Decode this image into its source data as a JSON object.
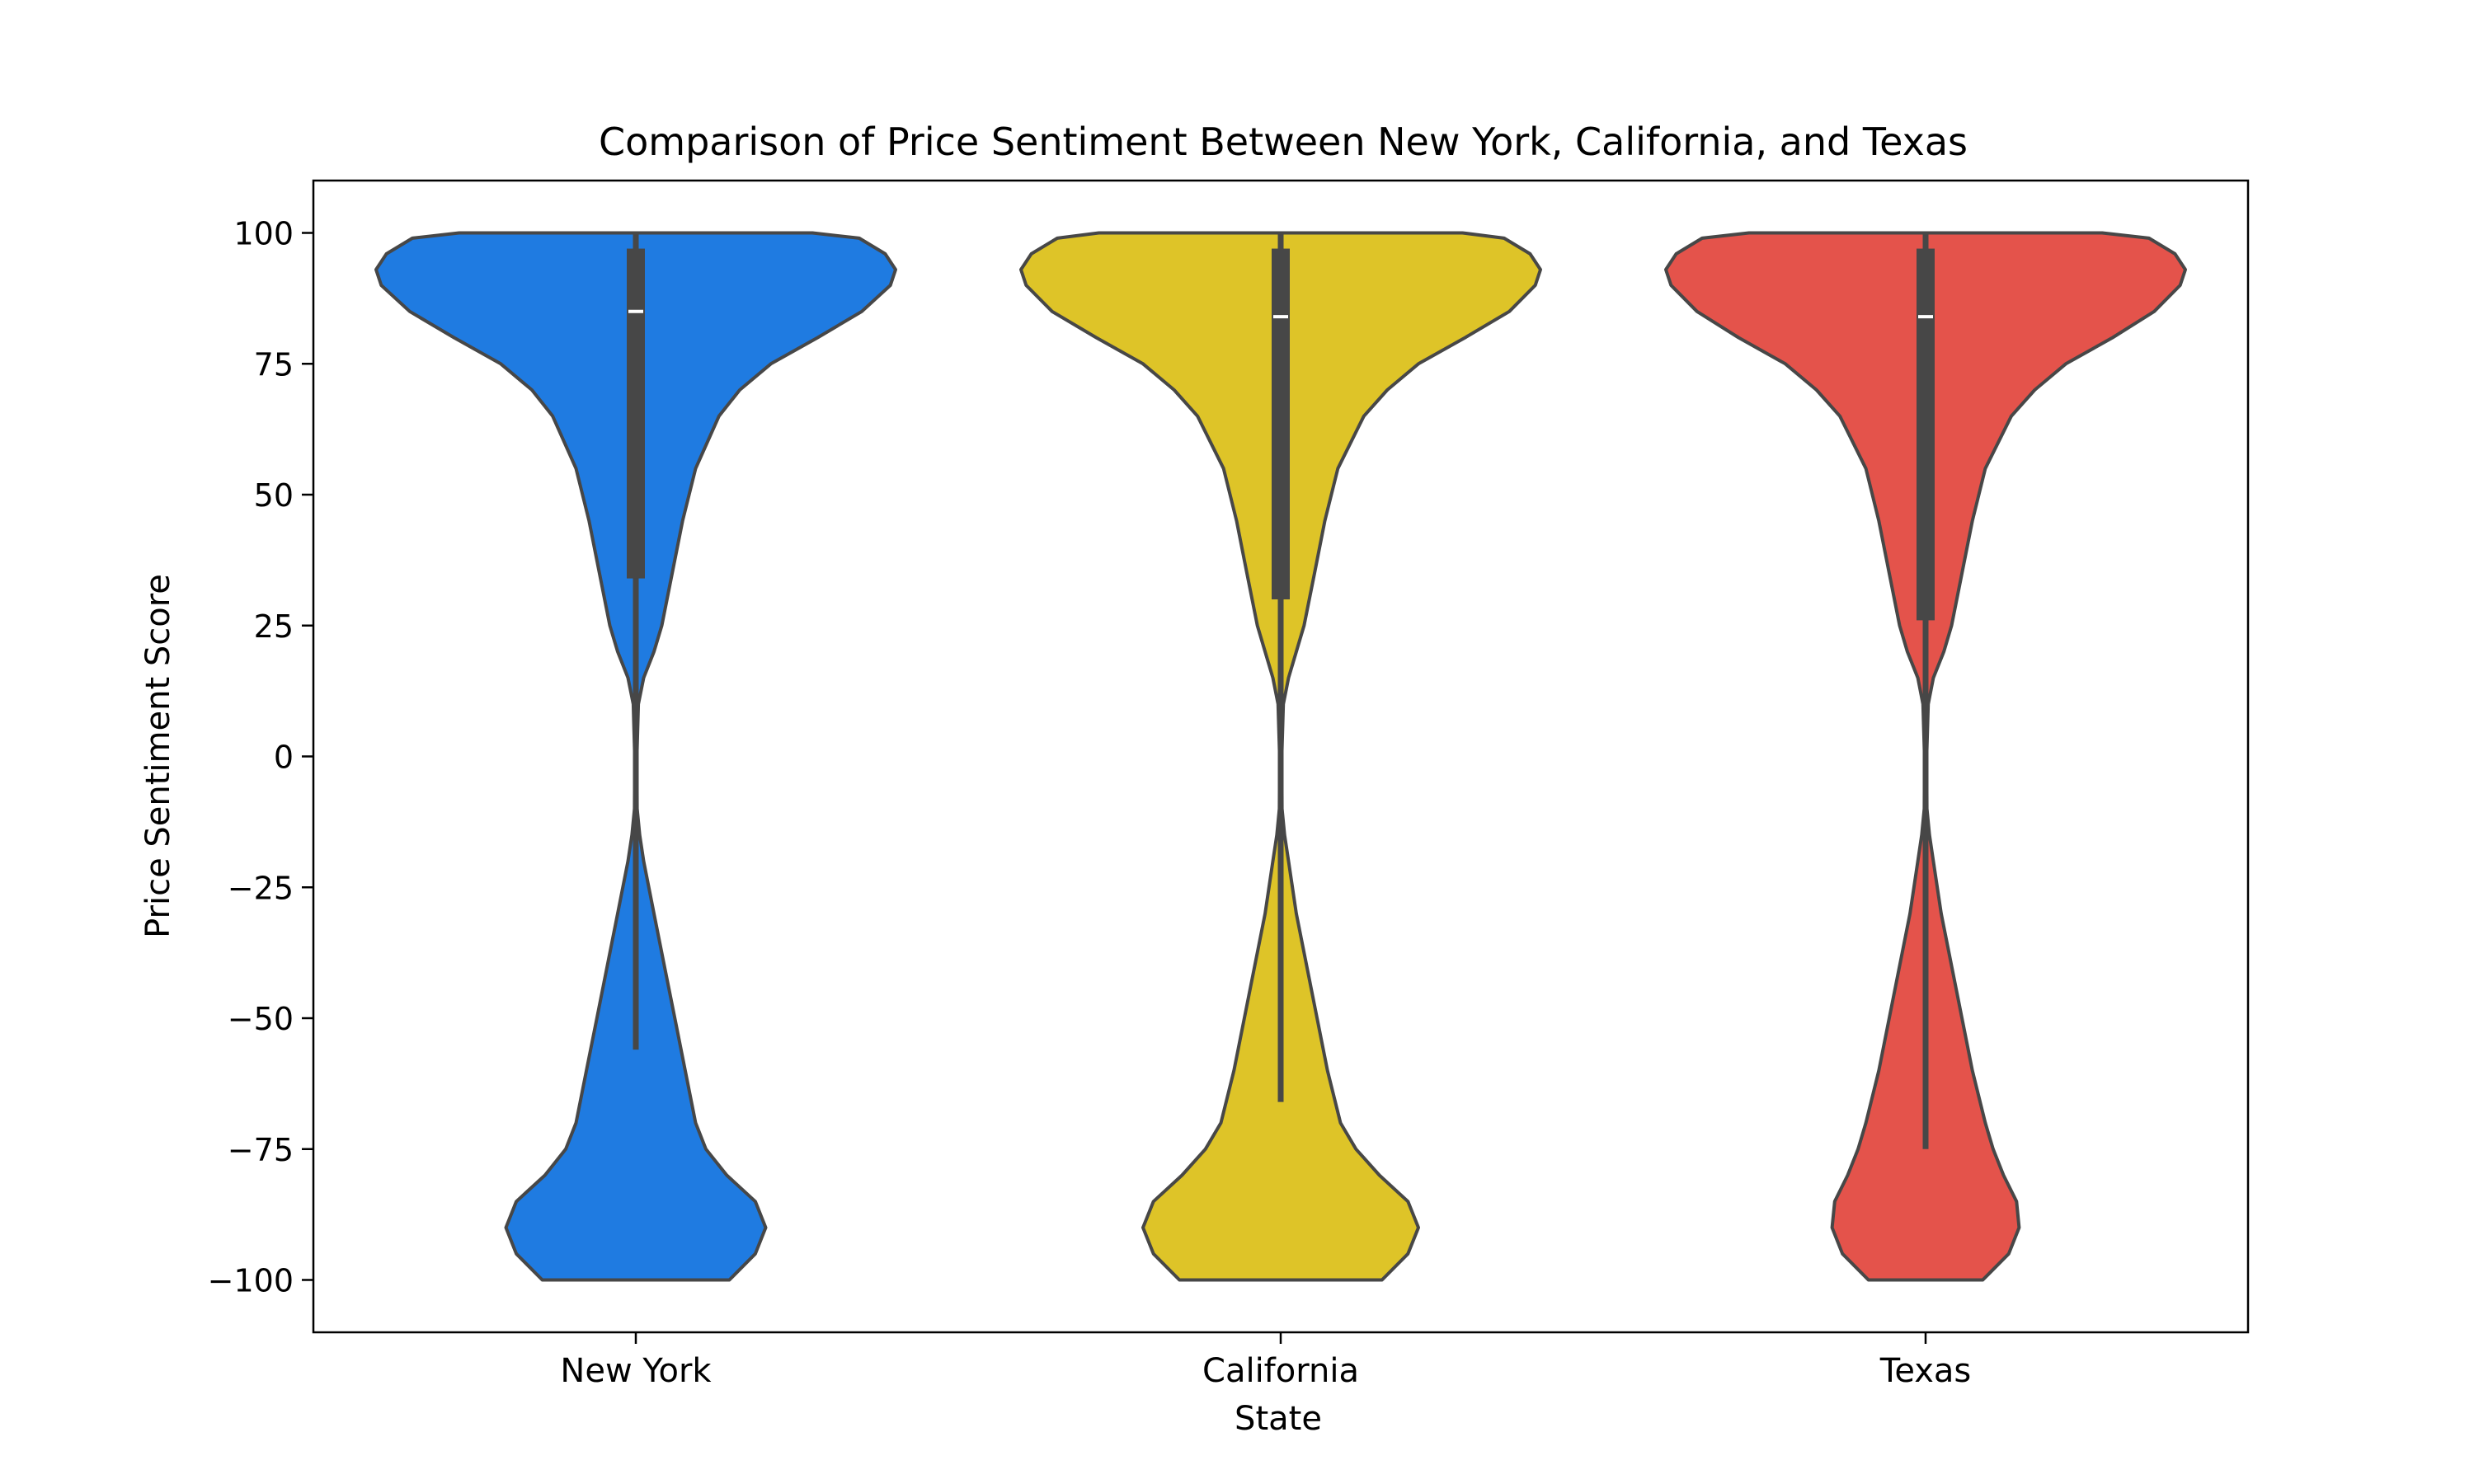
{
  "chart_data": {
    "type": "violin",
    "title": "Comparison of Price Sentiment Between New York, California, and Texas",
    "xlabel": "State",
    "ylabel": "Price Sentiment Score",
    "categories": [
      "New York",
      "California",
      "Texas"
    ],
    "colors": [
      "#1f7be1",
      "#dec428",
      "#e4534b"
    ],
    "ylim": [
      -110,
      110
    ],
    "yticks": [
      100,
      75,
      50,
      25,
      0,
      -25,
      -50,
      -75,
      -100
    ],
    "ytick_labels": [
      "100",
      "75",
      "50",
      "25",
      "0",
      "−25",
      "−50",
      "−75",
      "−100"
    ],
    "grid": false,
    "series": [
      {
        "name": "New York",
        "median": 85,
        "q1": 34,
        "q3": 97,
        "whisker_low": -56,
        "whisker_high": 100,
        "density": [
          [
            -100,
            0.36
          ],
          [
            -95,
            0.46
          ],
          [
            -90,
            0.5
          ],
          [
            -85,
            0.46
          ],
          [
            -80,
            0.35
          ],
          [
            -75,
            0.27
          ],
          [
            -70,
            0.23
          ],
          [
            -60,
            0.19
          ],
          [
            -50,
            0.15
          ],
          [
            -40,
            0.11
          ],
          [
            -30,
            0.07
          ],
          [
            -20,
            0.03
          ],
          [
            -15,
            0.015
          ],
          [
            -10,
            0.005
          ],
          [
            0,
            0.004
          ],
          [
            10,
            0.01
          ],
          [
            15,
            0.03
          ],
          [
            20,
            0.07
          ],
          [
            25,
            0.1
          ],
          [
            35,
            0.14
          ],
          [
            45,
            0.18
          ],
          [
            55,
            0.23
          ],
          [
            65,
            0.32
          ],
          [
            70,
            0.4
          ],
          [
            75,
            0.52
          ],
          [
            80,
            0.7
          ],
          [
            85,
            0.87
          ],
          [
            90,
            0.98
          ],
          [
            93,
            1.0
          ],
          [
            96,
            0.96
          ],
          [
            99,
            0.86
          ],
          [
            100,
            0.68
          ]
        ]
      },
      {
        "name": "California",
        "median": 84,
        "q1": 30,
        "q3": 97,
        "whisker_low": -66,
        "whisker_high": 100,
        "density": [
          [
            -100,
            0.39
          ],
          [
            -95,
            0.49
          ],
          [
            -90,
            0.53
          ],
          [
            -85,
            0.49
          ],
          [
            -80,
            0.38
          ],
          [
            -75,
            0.29
          ],
          [
            -70,
            0.23
          ],
          [
            -60,
            0.18
          ],
          [
            -50,
            0.14
          ],
          [
            -40,
            0.1
          ],
          [
            -30,
            0.06
          ],
          [
            -20,
            0.03
          ],
          [
            -15,
            0.015
          ],
          [
            -10,
            0.005
          ],
          [
            0,
            0.004
          ],
          [
            10,
            0.01
          ],
          [
            15,
            0.03
          ],
          [
            20,
            0.06
          ],
          [
            25,
            0.09
          ],
          [
            35,
            0.13
          ],
          [
            45,
            0.17
          ],
          [
            55,
            0.22
          ],
          [
            65,
            0.32
          ],
          [
            70,
            0.41
          ],
          [
            75,
            0.53
          ],
          [
            80,
            0.71
          ],
          [
            85,
            0.88
          ],
          [
            90,
            0.98
          ],
          [
            93,
            1.0
          ],
          [
            96,
            0.96
          ],
          [
            99,
            0.86
          ],
          [
            100,
            0.7
          ]
        ]
      },
      {
        "name": "Texas",
        "median": 84,
        "q1": 26,
        "q3": 97,
        "whisker_low": -75,
        "whisker_high": 100,
        "density": [
          [
            -100,
            0.22
          ],
          [
            -95,
            0.32
          ],
          [
            -90,
            0.36
          ],
          [
            -85,
            0.35
          ],
          [
            -80,
            0.3
          ],
          [
            -75,
            0.26
          ],
          [
            -70,
            0.23
          ],
          [
            -60,
            0.18
          ],
          [
            -50,
            0.14
          ],
          [
            -40,
            0.1
          ],
          [
            -30,
            0.06
          ],
          [
            -20,
            0.03
          ],
          [
            -15,
            0.015
          ],
          [
            -10,
            0.005
          ],
          [
            0,
            0.004
          ],
          [
            10,
            0.01
          ],
          [
            15,
            0.03
          ],
          [
            20,
            0.07
          ],
          [
            25,
            0.1
          ],
          [
            35,
            0.14
          ],
          [
            45,
            0.18
          ],
          [
            55,
            0.23
          ],
          [
            65,
            0.33
          ],
          [
            70,
            0.42
          ],
          [
            75,
            0.54
          ],
          [
            80,
            0.72
          ],
          [
            85,
            0.88
          ],
          [
            90,
            0.98
          ],
          [
            93,
            1.0
          ],
          [
            96,
            0.96
          ],
          [
            99,
            0.86
          ],
          [
            100,
            0.68
          ]
        ]
      }
    ]
  }
}
